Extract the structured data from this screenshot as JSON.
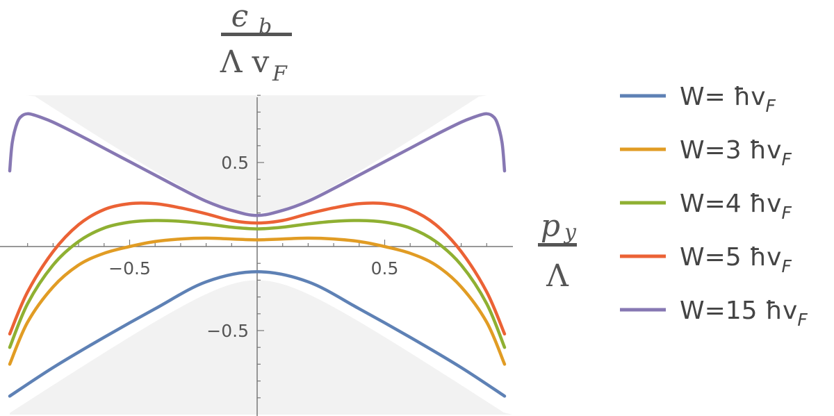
{
  "chart_data": {
    "type": "line",
    "title": "",
    "ylabel": {
      "numerator": "ϵ",
      "numerator_sub": "b",
      "denominator": "Λ v",
      "denominator_sub": "F"
    },
    "xlabel": {
      "numerator": "p",
      "numerator_sub": "y",
      "denominator": "Λ"
    },
    "xlim": [
      -0.97,
      1.0
    ],
    "ylim": [
      -1.0,
      0.9
    ],
    "x_ticks": [
      -0.5,
      0.5
    ],
    "x_tick_labels": [
      "−0.5",
      "0.5"
    ],
    "y_ticks": [
      -0.5,
      0.5
    ],
    "y_tick_labels": [
      "−0.5",
      "0.5"
    ],
    "grid": false,
    "legend_position": "right",
    "shaded_region": "light gray band region |ε| ≥ |p| bounded by ±sqrt(m²+p²)",
    "series": [
      {
        "name": "W= ħv",
        "name_sub": "F",
        "color": "#5E81B5",
        "x": [
          -0.97,
          -0.8,
          -0.6,
          -0.4,
          -0.2,
          0.0,
          0.2,
          0.4,
          0.6,
          0.8,
          0.97
        ],
        "y": [
          -0.89,
          -0.72,
          -0.54,
          -0.37,
          -0.21,
          -0.15,
          -0.21,
          -0.37,
          -0.54,
          -0.72,
          -0.89
        ]
      },
      {
        "name": "W=3 ħv",
        "name_sub": "F",
        "color": "#E19C24",
        "x": [
          -0.97,
          -0.9,
          -0.8,
          -0.7,
          -0.6,
          -0.5,
          -0.4,
          -0.3,
          -0.2,
          -0.1,
          0.0,
          0.1,
          0.2,
          0.3,
          0.4,
          0.5,
          0.6,
          0.7,
          0.8,
          0.9,
          0.97
        ],
        "y": [
          -0.7,
          -0.45,
          -0.24,
          -0.11,
          -0.04,
          0.0,
          0.03,
          0.045,
          0.05,
          0.045,
          0.04,
          0.045,
          0.05,
          0.045,
          0.03,
          0.0,
          -0.04,
          -0.11,
          -0.24,
          -0.45,
          -0.7
        ]
      },
      {
        "name": "W=4 ħv",
        "name_sub": "F",
        "color": "#8FB032",
        "x": [
          -0.97,
          -0.9,
          -0.8,
          -0.7,
          -0.6,
          -0.5,
          -0.4,
          -0.3,
          -0.2,
          -0.1,
          0.0,
          0.1,
          0.2,
          0.3,
          0.4,
          0.5,
          0.6,
          0.7,
          0.8,
          0.9,
          0.97
        ],
        "y": [
          -0.6,
          -0.34,
          -0.11,
          0.03,
          0.11,
          0.145,
          0.155,
          0.15,
          0.135,
          0.115,
          0.105,
          0.115,
          0.135,
          0.15,
          0.155,
          0.145,
          0.11,
          0.03,
          -0.11,
          -0.34,
          -0.6
        ]
      },
      {
        "name": "W=5 ħv",
        "name_sub": "F",
        "color": "#EB6235",
        "x": [
          -0.97,
          -0.9,
          -0.8,
          -0.7,
          -0.6,
          -0.5,
          -0.4,
          -0.3,
          -0.2,
          -0.1,
          0.0,
          0.1,
          0.2,
          0.3,
          0.4,
          0.5,
          0.6,
          0.7,
          0.8,
          0.9,
          0.97
        ],
        "y": [
          -0.52,
          -0.27,
          -0.03,
          0.13,
          0.22,
          0.255,
          0.255,
          0.23,
          0.195,
          0.155,
          0.14,
          0.155,
          0.195,
          0.23,
          0.255,
          0.255,
          0.22,
          0.13,
          -0.03,
          -0.27,
          -0.52
        ]
      },
      {
        "name": "W=15 ħv",
        "name_sub": "F",
        "color": "#8778B3",
        "x": [
          -0.97,
          -0.96,
          -0.94,
          -0.92,
          -0.9,
          -0.88,
          -0.85,
          -0.8,
          -0.7,
          -0.6,
          -0.5,
          -0.4,
          -0.3,
          -0.2,
          -0.1,
          0.0,
          0.1,
          0.2,
          0.3,
          0.4,
          0.5,
          0.6,
          0.7,
          0.8,
          0.85,
          0.88,
          0.9,
          0.92,
          0.94,
          0.96,
          0.97
        ],
        "y": [
          0.45,
          0.62,
          0.74,
          0.78,
          0.79,
          0.785,
          0.77,
          0.74,
          0.665,
          0.585,
          0.505,
          0.425,
          0.345,
          0.27,
          0.215,
          0.185,
          0.215,
          0.27,
          0.345,
          0.425,
          0.505,
          0.585,
          0.665,
          0.74,
          0.77,
          0.785,
          0.79,
          0.78,
          0.74,
          0.62,
          0.45
        ]
      }
    ]
  }
}
